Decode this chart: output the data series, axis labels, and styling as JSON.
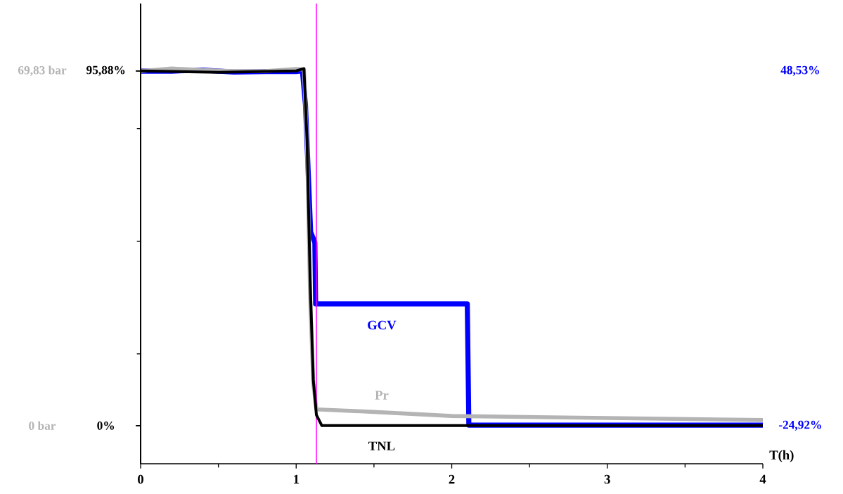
{
  "chart_data": {
    "type": "line",
    "xlabel": "T(h)",
    "xlim": [
      0,
      4
    ],
    "xticks": [
      0,
      {
        "value": 0.5,
        "label": null
      },
      1,
      {
        "value": 1.5,
        "label": null
      },
      2,
      {
        "value": 2.5,
        "label": null
      },
      3,
      {
        "value": 3.5,
        "label": null
      },
      4
    ],
    "ylim": [
      -10.3,
      114.1
    ],
    "yticks": [
      {
        "value": 95.88,
        "label": "95,88%"
      },
      {
        "value": 80.3,
        "label": null
      },
      {
        "value": 49.8,
        "label": null
      },
      {
        "value": 19.4,
        "label": null
      },
      {
        "value": 0,
        "label": "0%"
      }
    ],
    "y2lim": [
      -7.5,
      83.1
    ],
    "y2ticks": [
      {
        "value": 69.83,
        "label": "69,83 bar"
      },
      {
        "value": 0,
        "label": "0 bar"
      }
    ],
    "y3lim": [
      -32.8,
      62.5
    ],
    "y3ticks": [
      {
        "value": 48.53,
        "label": "48,53%"
      },
      {
        "value": -24.92,
        "label": "-24,92%"
      }
    ],
    "series": [
      {
        "name": "GCV",
        "color": "#0000ff",
        "axis": "y3",
        "x": [
          0,
          0.2,
          0.4,
          0.6,
          0.8,
          1.0,
          1.04,
          1.06,
          1.093,
          1.12,
          1.125,
          2.1,
          2.11,
          4.0
        ],
        "values": [
          48.5,
          48.5,
          48.7,
          48.3,
          48.4,
          48.4,
          48.6,
          41.4,
          15.2,
          13.0,
          0.3,
          0.3,
          -24.8,
          -24.8
        ]
      },
      {
        "name": "Pr",
        "color": "#b4b4b4",
        "axis": "y2",
        "x": [
          0,
          0.2,
          0.4,
          0.6,
          0.8,
          1.0,
          1.05,
          1.07,
          1.09,
          1.11,
          1.13,
          1.5,
          2.0,
          3.0,
          4.0
        ],
        "values": [
          69.8,
          70.3,
          70.0,
          69.8,
          69.8,
          70.2,
          70.1,
          55,
          25,
          8.3,
          3.2,
          2.7,
          1.9,
          1.5,
          1.1
        ]
      },
      {
        "name": "TNL",
        "color": "#000000",
        "axis": "y",
        "x": [
          0,
          0.5,
          1.0,
          1.05,
          1.07,
          1.09,
          1.11,
          1.13,
          1.165,
          4.0
        ],
        "values": [
          95.9,
          95.5,
          95.9,
          96.5,
          77.0,
          39.0,
          12.4,
          2.9,
          0,
          0
        ]
      }
    ],
    "ref_lines": [
      {
        "axis": "x",
        "value": 1.13,
        "color": "#ff00ff"
      }
    ]
  }
}
